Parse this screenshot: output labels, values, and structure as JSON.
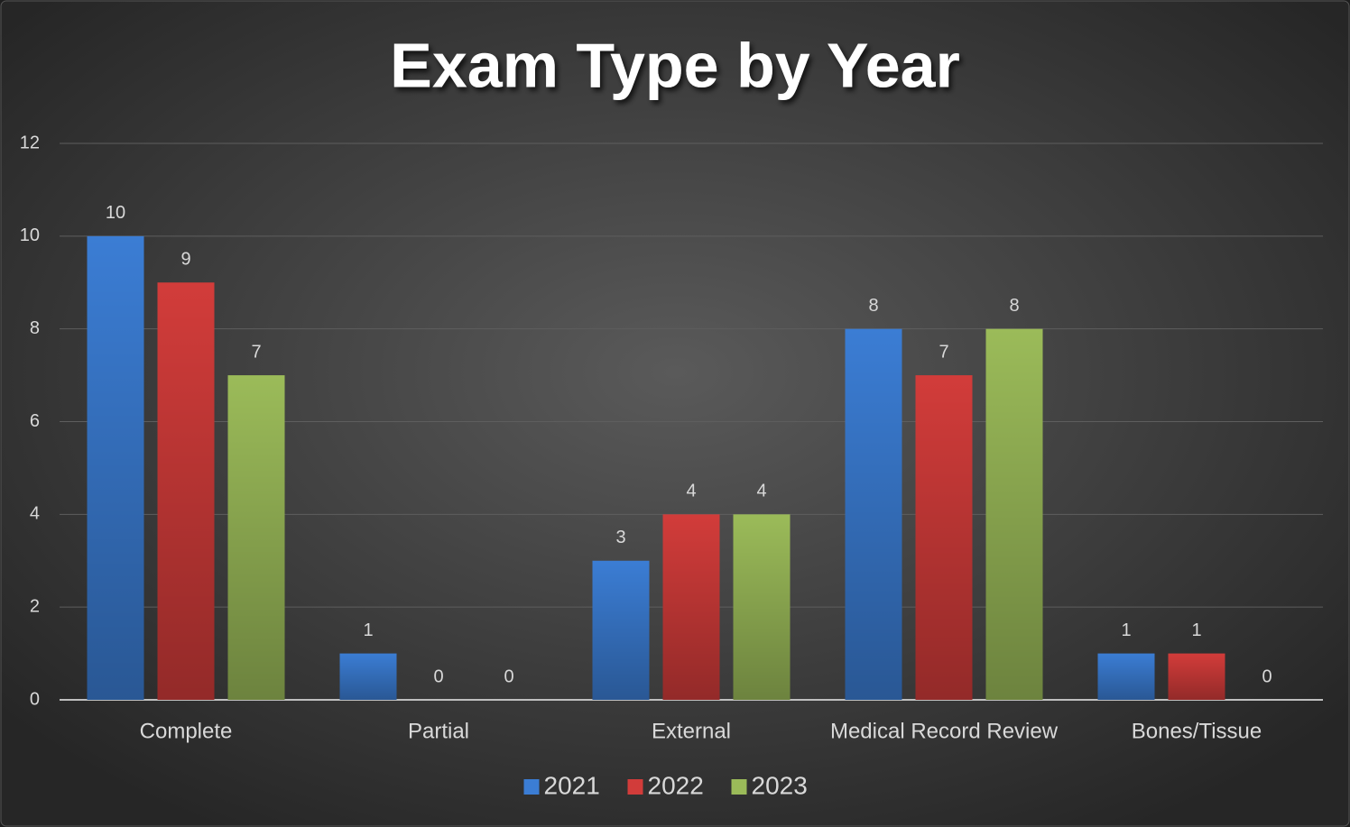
{
  "chart_data": {
    "type": "bar",
    "title": "Exam Type by Year",
    "categories": [
      "Complete",
      "Partial",
      "External",
      "Medical Record Review",
      "Bones/Tissue"
    ],
    "series": [
      {
        "name": "2021",
        "color": "#3b7dd4",
        "values": [
          10,
          1,
          3,
          8,
          1
        ]
      },
      {
        "name": "2022",
        "color": "#d23c3a",
        "values": [
          9,
          0,
          4,
          7,
          1
        ]
      },
      {
        "name": "2023",
        "color": "#9bbb59",
        "values": [
          7,
          0,
          4,
          8,
          0
        ]
      }
    ],
    "ylim": [
      0,
      12
    ],
    "yticks": [
      0,
      2,
      4,
      6,
      8,
      10,
      12
    ],
    "grid": true,
    "legend": "bottom"
  }
}
